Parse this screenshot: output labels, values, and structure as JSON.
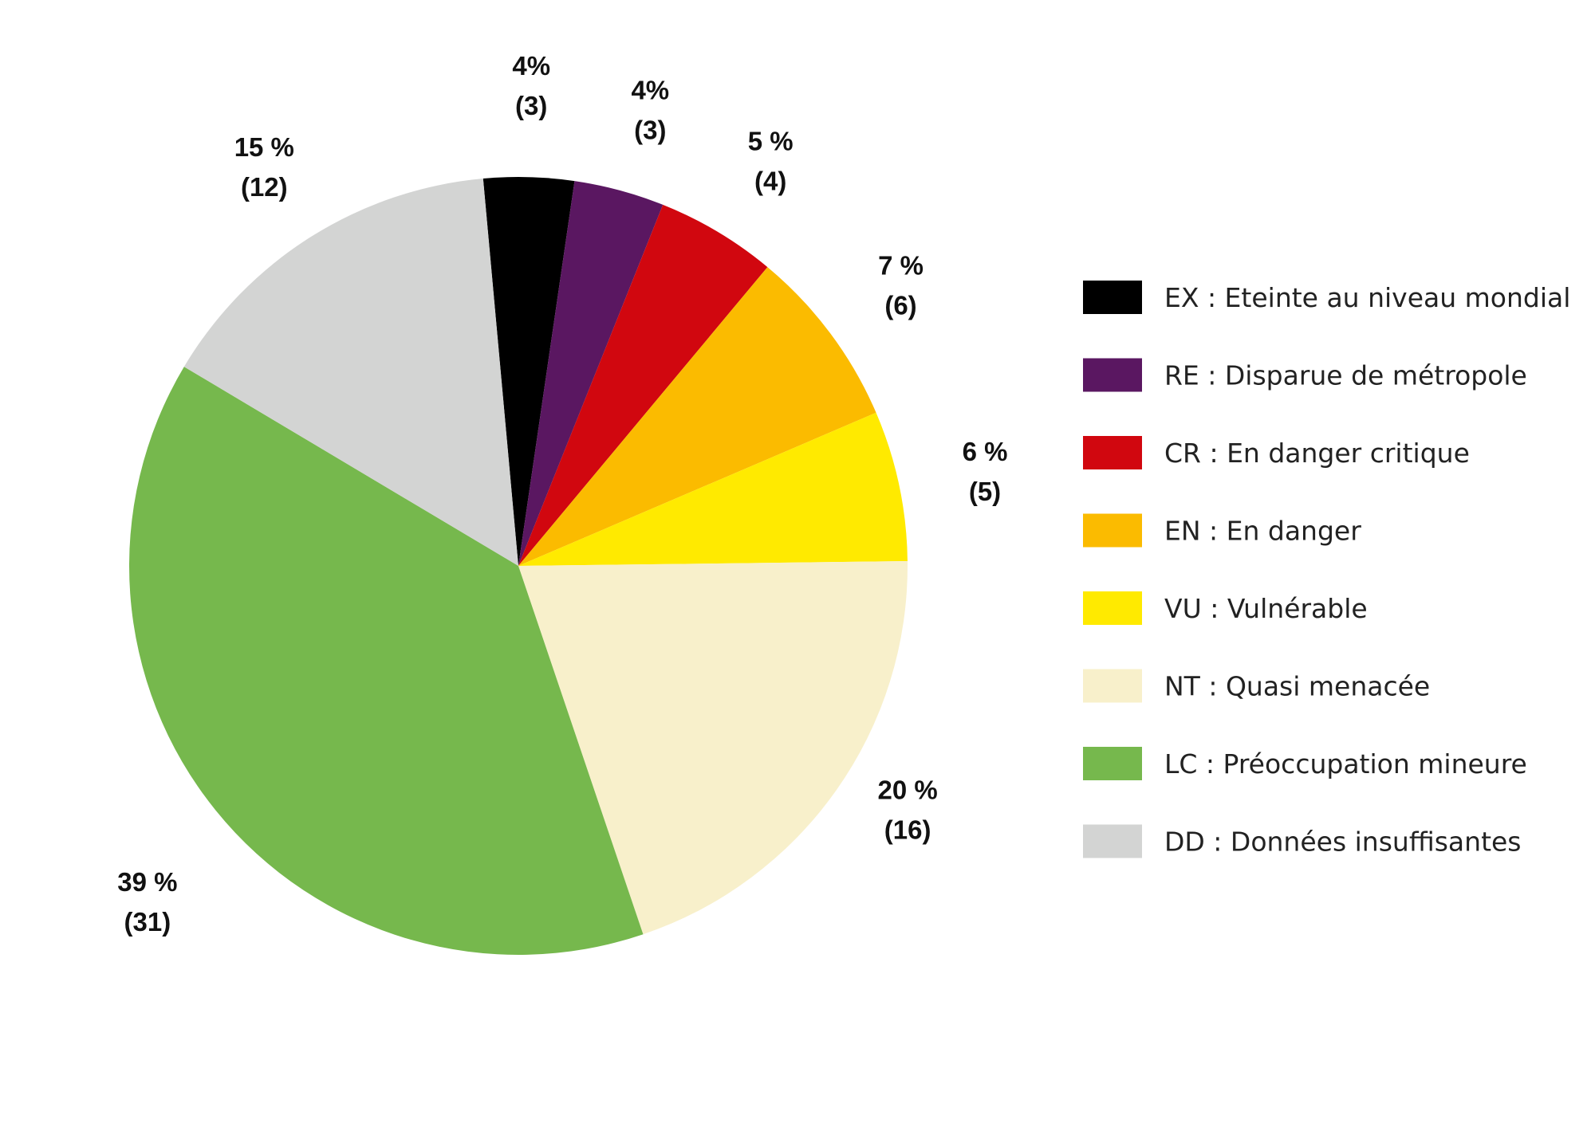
{
  "chart_data": {
    "type": "pie",
    "slices": [
      {
        "code": "EX",
        "legend": "EX : Eteinte au niveau mondial",
        "pct_label": "4%",
        "count_label": "(3)",
        "count": 3,
        "color": "#000000"
      },
      {
        "code": "RE",
        "legend": "RE : Disparue de métropole",
        "pct_label": "4%",
        "count_label": "(3)",
        "count": 3,
        "color": "#5a1761"
      },
      {
        "code": "CR",
        "legend": "CR : En danger critique",
        "pct_label": "5 %",
        "count_label": "(4)",
        "count": 4,
        "color": "#d1070f"
      },
      {
        "code": "EN",
        "legend": "EN : En danger",
        "pct_label": "7 %",
        "count_label": "(6)",
        "count": 6,
        "color": "#fbbb00"
      },
      {
        "code": "VU",
        "legend": "VU : Vulnérable",
        "pct_label": "6 %",
        "count_label": "(5)",
        "count": 5,
        "color": "#ffea00"
      },
      {
        "code": "NT",
        "legend": "NT : Quasi menacée",
        "pct_label": "20 %",
        "count_label": "(16)",
        "count": 16,
        "color": "#f8f0cb"
      },
      {
        "code": "LC",
        "legend": "LC : Préoccupation mineure",
        "pct_label": "39 %",
        "count_label": "(31)",
        "count": 31,
        "color": "#76b84d"
      },
      {
        "code": "DD",
        "legend": "DD : Données insuffisantes",
        "pct_label": "15 %",
        "count_label": "(12)",
        "count": 12,
        "color": "#d3d4d3"
      }
    ],
    "legend_placement": "right"
  }
}
